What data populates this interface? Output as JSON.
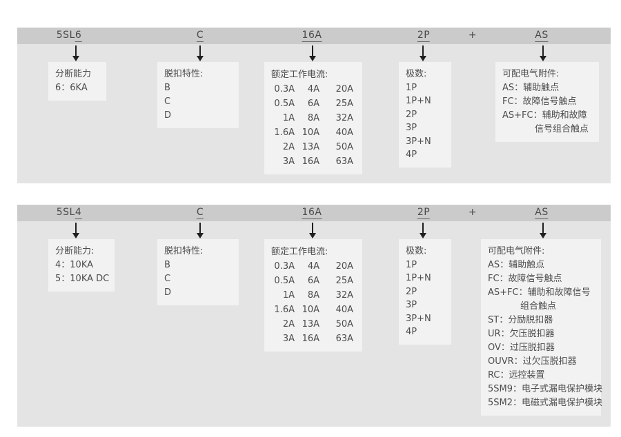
{
  "colors": {
    "page_bg": "#ffffff",
    "panel_bg": "#e4e4e4",
    "code_bar_bg": "#cbcbcb",
    "box_bg": "#f2f2f2",
    "text": "#4d4d4d",
    "arrow": "#1f1f1f"
  },
  "panels": [
    {
      "code": {
        "seg1_pre": "5SL",
        "seg1_u": "6",
        "seg2_u": "C",
        "seg3_u": "16A",
        "seg4_u": "2P",
        "plus": "+",
        "seg5_u": "AS"
      },
      "breaking_capacity": {
        "title": "分断能力",
        "lines": [
          "6：6KA"
        ]
      },
      "trip_characteristic": {
        "title": "脱扣特性:",
        "lines": [
          "B",
          "C",
          "D"
        ]
      },
      "rated_current": {
        "title": "额定工作电流:",
        "rows": [
          [
            "0.3A",
            "4A",
            "20A"
          ],
          [
            "0.5A",
            "6A",
            "25A"
          ],
          [
            "1A",
            "8A",
            "32A"
          ],
          [
            "1.6A",
            "10A",
            "40A"
          ],
          [
            "2A",
            "13A",
            "50A"
          ],
          [
            "3A",
            "16A",
            "63A"
          ]
        ]
      },
      "poles": {
        "title": "极数:",
        "lines": [
          "1P",
          "1P+N",
          "2P",
          "3P",
          "3P+N",
          "4P"
        ]
      },
      "accessories": {
        "title": "可配电气附件:",
        "lines": [
          "AS：辅助触点",
          "FC：故障信号触点",
          "AS+FC：辅助和故障",
          "信号组合触点"
        ]
      }
    },
    {
      "code": {
        "seg1_pre": "5SL",
        "seg1_u": "4",
        "seg2_u": "C",
        "seg3_u": "16A",
        "seg4_u": "2P",
        "plus": "+",
        "seg5_u": "AS"
      },
      "breaking_capacity": {
        "title": "分断能力:",
        "lines": [
          "4：10KA",
          "5：10KA DC"
        ]
      },
      "trip_characteristic": {
        "title": "脱扣特性:",
        "lines": [
          "B",
          "C",
          "D"
        ]
      },
      "rated_current": {
        "title": "额定工作电流:",
        "rows": [
          [
            "0.3A",
            "4A",
            "20A"
          ],
          [
            "0.5A",
            "6A",
            "25A"
          ],
          [
            "1A",
            "8A",
            "32A"
          ],
          [
            "1.6A",
            "10A",
            "40A"
          ],
          [
            "2A",
            "13A",
            "50A"
          ],
          [
            "3A",
            "16A",
            "63A"
          ]
        ]
      },
      "poles": {
        "title": "极数:",
        "lines": [
          "1P",
          "1P+N",
          "2P",
          "3P",
          "3P+N",
          "4P"
        ]
      },
      "accessories": {
        "title": "可配电气附件:",
        "lines": [
          "AS：辅助触点",
          "FC：故障信号触点",
          "AS+FC：辅助和故障信号",
          "组合触点",
          "ST：分励脱扣器",
          "UR：欠压脱扣器",
          "OV：过压脱扣器",
          "OUVR：过欠压脱扣器",
          "RC：远控装置",
          "5SM9：电子式漏电保护模块",
          "5SM2：电磁式漏电保护模块"
        ]
      }
    }
  ]
}
